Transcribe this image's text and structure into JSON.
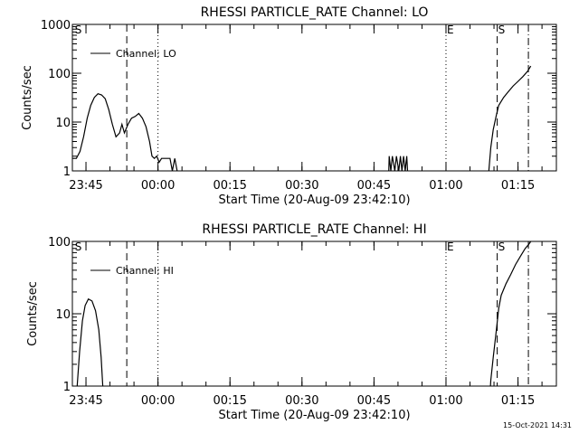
{
  "footer_date": "15-Oct-2021 14:31",
  "chart_data": [
    {
      "type": "line",
      "title": "RHESSI PARTICLE_RATE Channel: LO",
      "xlabel": "Start Time (20-Aug-09 23:42:10)",
      "ylabel": "Counts/sec",
      "yscale": "log",
      "ylim": [
        1,
        1000
      ],
      "xlim_minutes": [
        0,
        100.83
      ],
      "xticks": [
        "23:45",
        "00:00",
        "00:15",
        "00:30",
        "00:45",
        "01:00",
        "01:15"
      ],
      "yticks": [
        "1",
        "10",
        "100",
        "1000"
      ],
      "legend": "Channel: LO",
      "legend_position": "top-left",
      "markers": [
        {
          "label": "S",
          "t": "23:42:30",
          "style": "none"
        },
        {
          "label": "",
          "t": "23:53:30",
          "style": "dashed"
        },
        {
          "label": "",
          "t": "00:00:00",
          "style": "dotted"
        },
        {
          "label": "E",
          "t": "01:00:00",
          "style": "dotted"
        },
        {
          "label": "S",
          "t": "01:10:40",
          "style": "dashed"
        },
        {
          "label": "",
          "t": "01:17:10",
          "style": "dashdot"
        }
      ],
      "series": [
        {
          "points": [
            [
              "23:42:10",
              1.8
            ],
            [
              "23:43:00",
              1.8
            ],
            [
              "23:43:45",
              2.5
            ],
            [
              "23:44:30",
              5
            ],
            [
              "23:45:15",
              12
            ],
            [
              "23:46:00",
              22
            ],
            [
              "23:46:45",
              32
            ],
            [
              "23:47:30",
              38
            ],
            [
              "23:48:15",
              36
            ],
            [
              "23:49:00",
              30
            ],
            [
              "23:49:45",
              18
            ],
            [
              "23:50:30",
              9
            ],
            [
              "23:51:15",
              5
            ],
            [
              "23:52:00",
              6
            ],
            [
              "23:52:30",
              9
            ],
            [
              "23:53:00",
              6
            ],
            [
              "23:53:45",
              9
            ],
            [
              "23:54:30",
              12
            ],
            [
              "23:55:15",
              13
            ],
            [
              "23:56:00",
              15
            ],
            [
              "23:56:45",
              12
            ],
            [
              "23:57:30",
              8
            ],
            [
              "23:58:15",
              4
            ],
            [
              "23:58:45",
              2
            ],
            [
              "23:59:15",
              1.8
            ],
            [
              "23:59:45",
              2
            ],
            [
              "00:00:15",
              1.5
            ],
            [
              "00:00:45",
              1.8
            ],
            [
              "00:02:30",
              1.8
            ],
            [
              "00:03:00",
              1
            ],
            [
              "00:03:30",
              1.8
            ],
            [
              "00:04:00",
              1
            ],
            [
              "00:04:15",
              0.5
            ]
          ]
        },
        {
          "points": [
            [
              "00:48:00",
              0.5
            ],
            [
              "00:48:10",
              2
            ],
            [
              "00:48:30",
              1
            ],
            [
              "00:48:50",
              2
            ],
            [
              "00:49:20",
              1
            ],
            [
              "00:49:40",
              2
            ],
            [
              "00:50:10",
              1
            ],
            [
              "00:50:30",
              2
            ],
            [
              "00:50:50",
              1
            ],
            [
              "00:51:10",
              2
            ],
            [
              "00:51:30",
              1
            ],
            [
              "00:51:50",
              2
            ],
            [
              "00:52:10",
              0.5
            ]
          ]
        },
        {
          "points": [
            [
              "01:08:40",
              0.5
            ],
            [
              "01:09:00",
              1.2
            ],
            [
              "01:09:20",
              3
            ],
            [
              "01:09:50",
              7
            ],
            [
              "01:10:30",
              14
            ],
            [
              "01:11:00",
              22
            ],
            [
              "01:12:00",
              32
            ],
            [
              "01:13:00",
              42
            ],
            [
              "01:14:00",
              55
            ],
            [
              "01:15:00",
              68
            ],
            [
              "01:16:00",
              85
            ],
            [
              "01:17:00",
              110
            ],
            [
              "01:17:40",
              140
            ]
          ]
        }
      ]
    },
    {
      "type": "line",
      "title": "RHESSI PARTICLE_RATE Channel: HI",
      "xlabel": "Start Time (20-Aug-09 23:42:10)",
      "ylabel": "Counts/sec",
      "yscale": "log",
      "ylim": [
        1,
        100
      ],
      "xlim_minutes": [
        0,
        100.83
      ],
      "xticks": [
        "23:45",
        "00:00",
        "00:15",
        "00:30",
        "00:45",
        "01:00",
        "01:15"
      ],
      "yticks": [
        "1",
        "10",
        "100"
      ],
      "legend": "Channel: HI",
      "legend_position": "top-left",
      "markers": [
        {
          "label": "S",
          "t": "23:42:30",
          "style": "none"
        },
        {
          "label": "",
          "t": "23:53:30",
          "style": "dashed"
        },
        {
          "label": "",
          "t": "00:00:00",
          "style": "dotted"
        },
        {
          "label": "E",
          "t": "01:00:00",
          "style": "dotted"
        },
        {
          "label": "S",
          "t": "01:10:40",
          "style": "dashed"
        },
        {
          "label": "",
          "t": "01:17:10",
          "style": "dashdot"
        }
      ],
      "series": [
        {
          "points": [
            [
              "23:43:00",
              0.5
            ],
            [
              "23:43:10",
              1
            ],
            [
              "23:43:40",
              3
            ],
            [
              "23:44:15",
              8
            ],
            [
              "23:44:50",
              13
            ],
            [
              "23:45:30",
              16
            ],
            [
              "23:46:15",
              15
            ],
            [
              "23:47:00",
              11
            ],
            [
              "23:47:40",
              6
            ],
            [
              "23:48:10",
              2.5
            ],
            [
              "23:48:30",
              1
            ],
            [
              "23:48:40",
              0.5
            ]
          ]
        },
        {
          "points": [
            [
              "01:09:00",
              0.5
            ],
            [
              "01:09:20",
              1.2
            ],
            [
              "01:09:50",
              2.5
            ],
            [
              "01:10:30",
              6
            ],
            [
              "01:11:00",
              12
            ],
            [
              "01:11:30",
              18
            ],
            [
              "01:12:30",
              26
            ],
            [
              "01:13:30",
              35
            ],
            [
              "01:14:30",
              48
            ],
            [
              "01:15:30",
              62
            ],
            [
              "01:16:30",
              80
            ],
            [
              "01:17:10",
              90
            ],
            [
              "01:17:40",
              100
            ]
          ]
        }
      ]
    }
  ]
}
